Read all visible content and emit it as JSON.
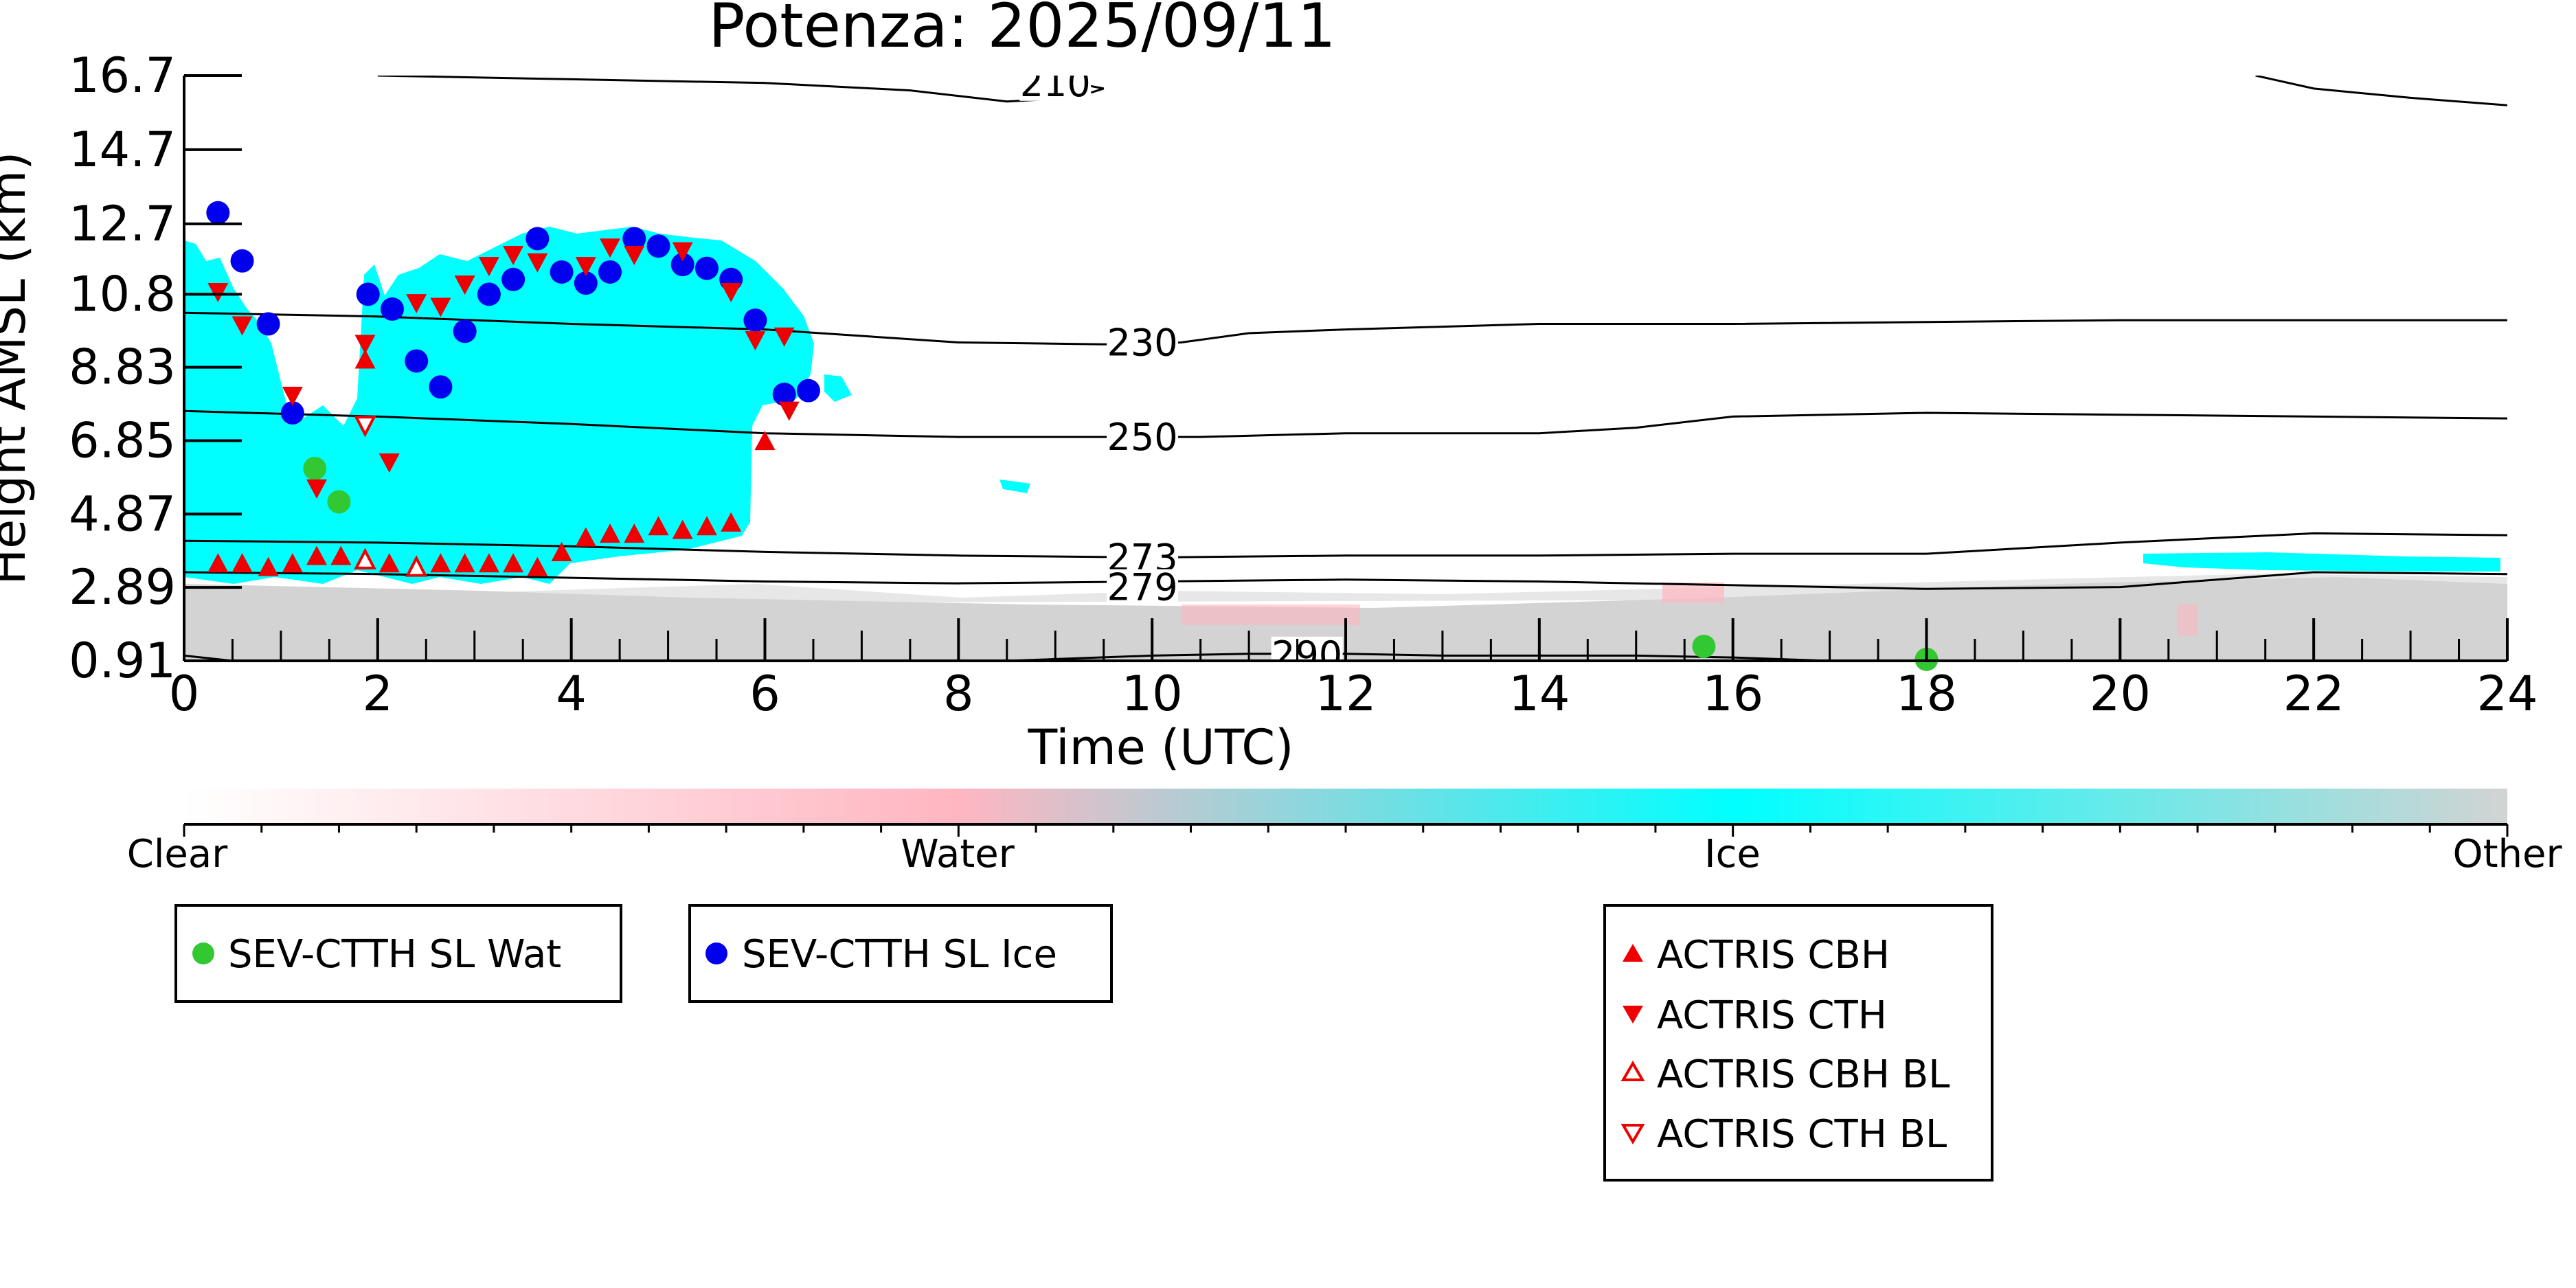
{
  "chart_data": {
    "type": "scatter",
    "title": "Potenza: 2025/09/11",
    "xlabel": "Time (UTC)",
    "ylabel": "Height AMSL (km)",
    "xlim": [
      0,
      24
    ],
    "ylim": [
      0.91,
      16.7
    ],
    "x_ticks": [
      "0",
      "2",
      "4",
      "6",
      "8",
      "10",
      "12",
      "14",
      "16",
      "18",
      "20",
      "22",
      "24"
    ],
    "y_ticks": [
      "0.91",
      "2.89",
      "4.87",
      "6.85",
      "8.83",
      "10.8",
      "12.7",
      "14.7",
      "16.7"
    ],
    "colorbar": {
      "labels": [
        "Clear",
        "Water",
        "Ice",
        "Other"
      ],
      "colors": [
        "#ffffff",
        "#ffb6c1",
        "#00ffff",
        "#d3d3d3"
      ]
    },
    "contours": [
      {
        "label": "210",
        "points": [
          [
            2,
            16.7
          ],
          [
            4,
            16.6
          ],
          [
            6,
            16.5
          ],
          [
            7.5,
            16.3
          ],
          [
            8.5,
            16.0
          ],
          [
            9.2,
            16.1
          ],
          [
            9.5,
            16.35
          ],
          [
            9.3,
            16.45
          ],
          [
            8.7,
            16.55
          ]
        ]
      },
      {
        "label": "210",
        "points": [
          [
            21.4,
            16.7
          ],
          [
            22,
            16.35
          ],
          [
            23,
            16.1
          ],
          [
            24,
            15.9
          ]
        ]
      },
      {
        "label": "230",
        "points": [
          [
            0,
            10.3
          ],
          [
            2,
            10.2
          ],
          [
            4,
            10.0
          ],
          [
            6,
            9.85
          ],
          [
            8,
            9.5
          ],
          [
            9.5,
            9.45
          ],
          [
            10.3,
            9.5
          ],
          [
            11,
            9.75
          ],
          [
            12,
            9.85
          ],
          [
            14,
            10.0
          ],
          [
            16,
            10.0
          ],
          [
            20,
            10.1
          ],
          [
            24,
            10.1
          ]
        ]
      },
      {
        "label": "250",
        "points": [
          [
            0,
            7.65
          ],
          [
            2,
            7.5
          ],
          [
            4,
            7.3
          ],
          [
            6,
            7.05
          ],
          [
            8,
            6.95
          ],
          [
            10.5,
            6.95
          ],
          [
            12,
            7.05
          ],
          [
            14,
            7.05
          ],
          [
            15,
            7.2
          ],
          [
            16,
            7.5
          ],
          [
            18,
            7.6
          ],
          [
            20,
            7.55
          ],
          [
            24,
            7.45
          ]
        ]
      },
      {
        "label": "273",
        "points": [
          [
            0,
            4.15
          ],
          [
            2,
            4.1
          ],
          [
            4,
            4.0
          ],
          [
            6,
            3.85
          ],
          [
            8,
            3.75
          ],
          [
            10,
            3.7
          ],
          [
            12,
            3.75
          ],
          [
            14,
            3.75
          ],
          [
            16,
            3.8
          ],
          [
            18,
            3.8
          ],
          [
            20,
            4.1
          ],
          [
            22,
            4.35
          ],
          [
            24,
            4.3
          ]
        ]
      },
      {
        "label": "279",
        "points": [
          [
            0,
            3.3
          ],
          [
            2,
            3.25
          ],
          [
            4,
            3.15
          ],
          [
            6,
            3.05
          ],
          [
            8,
            3.0
          ],
          [
            10,
            3.05
          ],
          [
            12,
            3.1
          ],
          [
            14,
            3.05
          ],
          [
            16,
            2.95
          ],
          [
            18,
            2.85
          ],
          [
            20,
            2.9
          ],
          [
            22,
            3.3
          ],
          [
            24,
            3.25
          ]
        ]
      },
      {
        "label": "290",
        "points": [
          [
            0,
            1.05
          ],
          [
            0.5,
            0.91
          ]
        ]
      },
      {
        "label": "290",
        "points": [
          [
            8.5,
            0.91
          ],
          [
            10,
            1.05
          ],
          [
            11,
            1.1
          ],
          [
            12,
            1.1
          ],
          [
            13,
            1.05
          ],
          [
            14,
            1.05
          ],
          [
            15,
            1.05
          ],
          [
            16,
            1.0
          ],
          [
            17,
            0.91
          ]
        ]
      }
    ],
    "series": [
      {
        "name": "SEV-CTTH SL Wat",
        "marker": "circle",
        "color": "#32c832",
        "x": [
          1.35,
          1.6,
          15.7,
          18.0
        ],
        "y": [
          6.1,
          5.2,
          1.3,
          0.95
        ]
      },
      {
        "name": "SEV-CTTH SL Ice",
        "marker": "circle",
        "color": "#0000ee",
        "x": [
          0.35,
          0.6,
          0.87,
          1.12,
          1.9,
          2.15,
          2.4,
          2.65,
          2.9,
          3.15,
          3.4,
          3.65,
          3.9,
          4.15,
          4.4,
          4.65,
          4.9,
          5.15,
          5.4,
          5.65,
          5.9,
          6.2,
          6.45
        ],
        "y": [
          13.0,
          11.7,
          10.0,
          7.6,
          10.8,
          10.4,
          9.0,
          8.3,
          9.8,
          10.8,
          11.2,
          12.3,
          11.4,
          11.1,
          11.4,
          12.3,
          12.1,
          11.6,
          11.5,
          11.2,
          10.1,
          8.1,
          8.2
        ]
      },
      {
        "name": "ACTRIS CBH",
        "marker": "triangle-up",
        "color": "#ee0000",
        "x": [
          0.35,
          0.6,
          0.87,
          1.12,
          1.37,
          1.62,
          1.87,
          2.12,
          2.4,
          2.65,
          2.9,
          3.15,
          3.4,
          3.65,
          3.9,
          4.15,
          4.4,
          4.65,
          4.9,
          5.15,
          5.4,
          5.65,
          6.0
        ],
        "y": [
          3.5,
          3.5,
          3.4,
          3.5,
          3.7,
          3.7,
          9.0,
          3.5,
          3.4,
          3.5,
          3.5,
          3.5,
          3.5,
          3.4,
          3.8,
          4.2,
          4.3,
          4.3,
          4.5,
          4.4,
          4.5,
          4.6,
          6.8
        ]
      },
      {
        "name": "ACTRIS CTH",
        "marker": "triangle-down",
        "color": "#ee0000",
        "x": [
          0.35,
          0.6,
          1.12,
          1.37,
          1.87,
          2.12,
          2.4,
          2.65,
          2.9,
          3.15,
          3.4,
          3.65,
          4.15,
          4.4,
          4.65,
          5.15,
          5.65,
          5.9,
          6.2,
          6.25
        ],
        "y": [
          10.9,
          10.0,
          8.1,
          5.6,
          9.5,
          6.3,
          10.6,
          10.5,
          11.1,
          11.6,
          11.9,
          11.7,
          11.6,
          12.1,
          11.9,
          12.0,
          10.9,
          9.6,
          9.7,
          7.7
        ]
      },
      {
        "name": "ACTRIS CBH BL",
        "marker": "triangle-up-open",
        "color": "#ee0000",
        "x": [
          1.87,
          2.4
        ],
        "y": [
          3.6,
          3.4
        ]
      },
      {
        "name": "ACTRIS CTH BL",
        "marker": "triangle-down-open",
        "color": "#ee0000",
        "x": [
          1.87
        ],
        "y": [
          7.3
        ]
      }
    ],
    "legends": [
      {
        "entries": [
          "SEV-CTTH SL Wat"
        ]
      },
      {
        "entries": [
          "SEV-CTTH SL Ice"
        ]
      },
      {
        "entries": [
          "ACTRIS CBH",
          "ACTRIS CTH",
          "ACTRIS CBH BL",
          "ACTRIS CTH BL"
        ]
      }
    ]
  }
}
